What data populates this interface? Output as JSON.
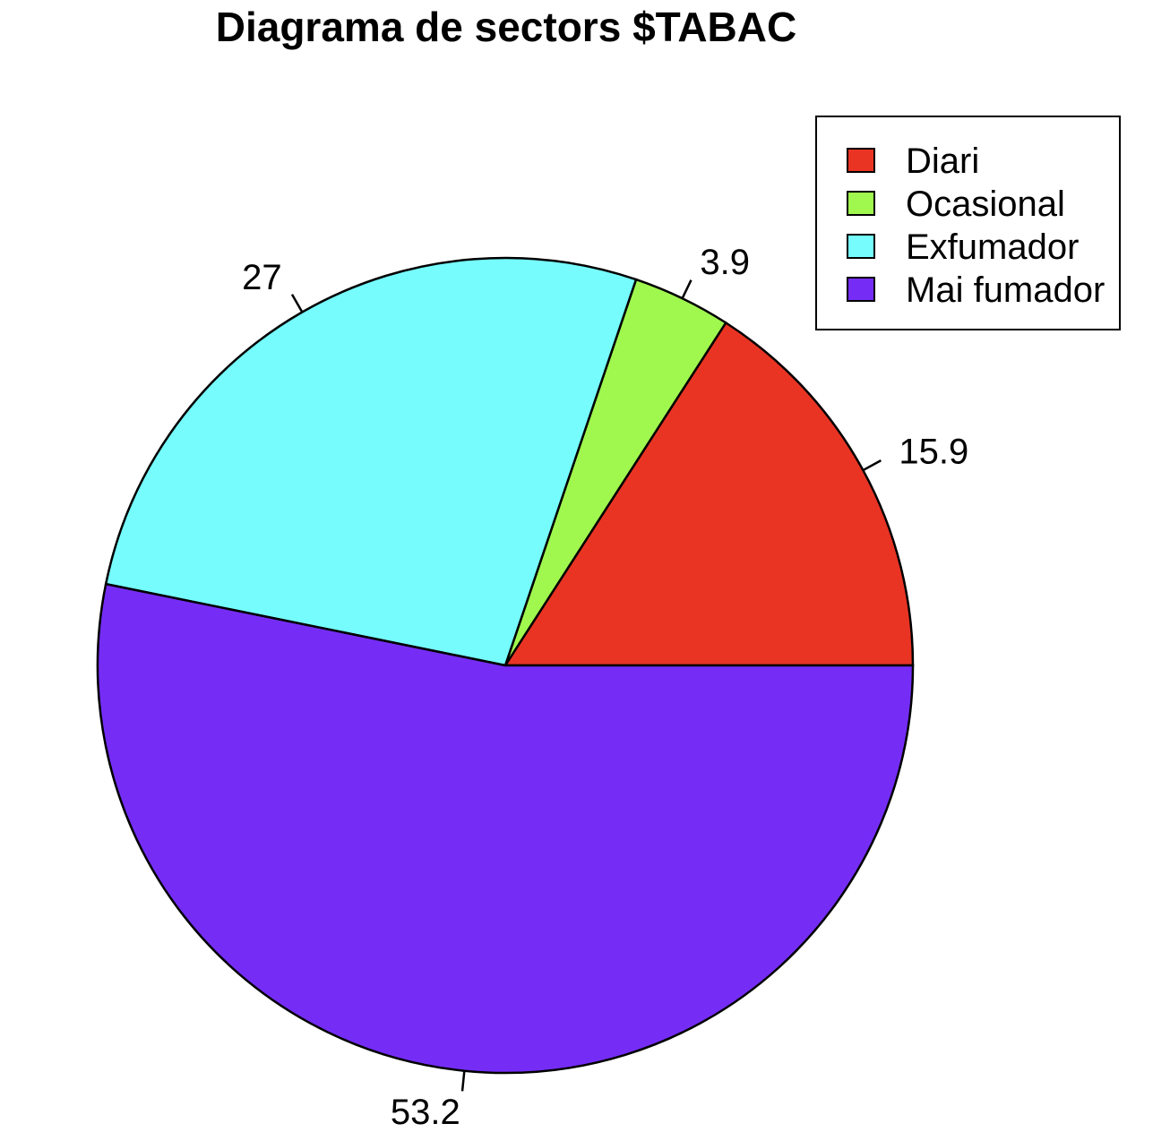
{
  "chart_data": {
    "type": "pie",
    "title": "Diagrama de sectors $TABAC",
    "categories": [
      "Diari",
      "Ocasional",
      "Exfumador",
      "Mai fumador"
    ],
    "values": [
      15.9,
      3.9,
      27,
      53.2
    ],
    "labels": [
      "15.9",
      "3.9",
      "27",
      "53.2"
    ],
    "colors": [
      "#E93424",
      "#A0F84F",
      "#76FCFD",
      "#752DF6"
    ],
    "start_angle_deg": 0,
    "direction": "counterclockwise",
    "legend": {
      "position": "top-right",
      "entries": [
        "Diari",
        "Ocasional",
        "Exfumador",
        "Mai fumador"
      ]
    }
  }
}
